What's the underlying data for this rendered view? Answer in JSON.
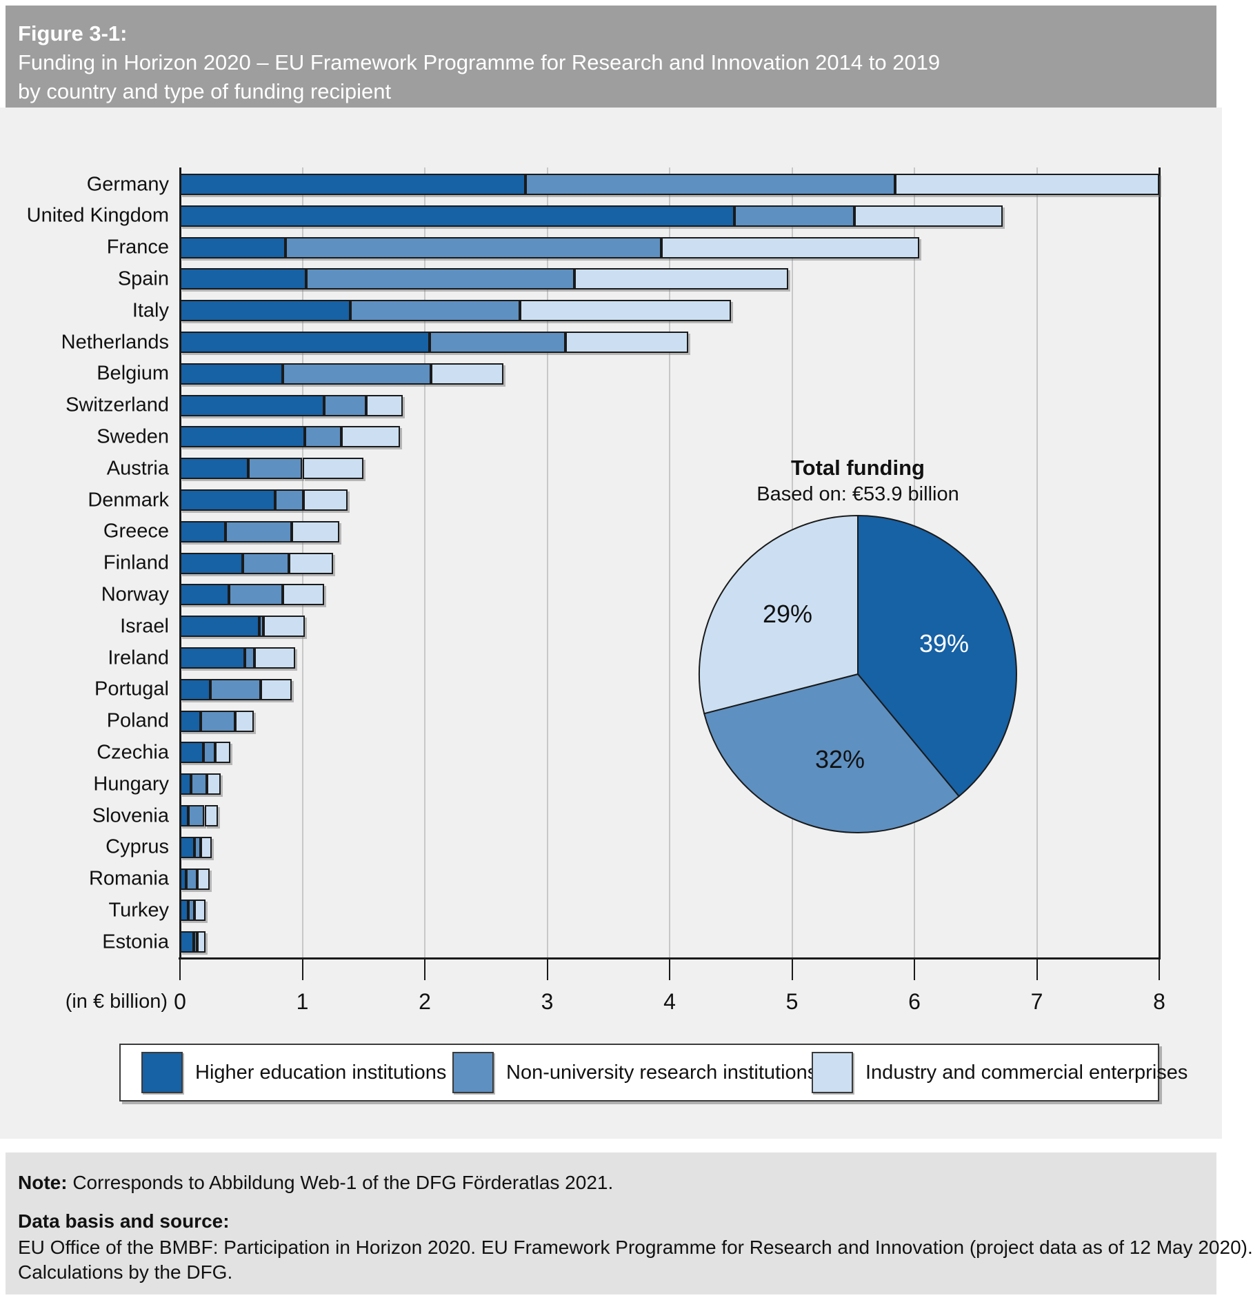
{
  "header": {
    "figure_label": "Figure 3-1:",
    "title_line1": "Funding in Horizon 2020 – EU Framework Programme for Research and Innovation 2014 to 2019",
    "title_line2": "by country and type of funding recipient"
  },
  "colors": {
    "higher_education": "#1761A5",
    "non_university": "#5E90C1",
    "industry": "#CCDFF2",
    "bar_border": "#1a1a1a",
    "header_band": "#9e9e9e",
    "chart_bg": "#f0f0f0",
    "footer_band": "#e2e2e2",
    "gridline": "#c7c7c7"
  },
  "chart_data": {
    "type": "bar",
    "orientation": "horizontal-stacked",
    "unit_label": "(in € billion)",
    "xlim": [
      0,
      8
    ],
    "x_ticks": [
      0,
      1,
      2,
      3,
      4,
      5,
      6,
      7,
      8
    ],
    "grid": "vertical",
    "categories": [
      "Germany",
      "United Kingdom",
      "France",
      "Spain",
      "Italy",
      "Netherlands",
      "Belgium",
      "Switzerland",
      "Sweden",
      "Austria",
      "Denmark",
      "Greece",
      "Finland",
      "Norway",
      "Israel",
      "Ireland",
      "Portugal",
      "Poland",
      "Czechia",
      "Hungary",
      "Slovenia",
      "Cyprus",
      "Romania",
      "Turkey",
      "Estonia"
    ],
    "series": [
      {
        "name": "Higher education institutions",
        "color_key": "higher_education",
        "values": [
          2.82,
          4.53,
          0.86,
          1.03,
          1.39,
          2.04,
          0.84,
          1.18,
          1.02,
          0.56,
          0.78,
          0.37,
          0.51,
          0.4,
          0.65,
          0.53,
          0.25,
          0.17,
          0.19,
          0.09,
          0.07,
          0.12,
          0.05,
          0.07,
          0.11
        ]
      },
      {
        "name": "Non-university research institutions",
        "color_key": "non_university",
        "values": [
          3.02,
          0.98,
          3.07,
          2.19,
          1.39,
          1.11,
          1.21,
          0.34,
          0.3,
          0.44,
          0.23,
          0.54,
          0.38,
          0.44,
          0.03,
          0.08,
          0.41,
          0.28,
          0.1,
          0.13,
          0.13,
          0.05,
          0.09,
          0.05,
          0.03
        ]
      },
      {
        "name": "Industry and commercial enterprises",
        "color_key": "industry",
        "values": [
          2.16,
          1.21,
          2.11,
          1.75,
          1.72,
          1.0,
          0.59,
          0.3,
          0.48,
          0.5,
          0.36,
          0.39,
          0.36,
          0.34,
          0.34,
          0.33,
          0.25,
          0.15,
          0.12,
          0.11,
          0.11,
          0.09,
          0.1,
          0.09,
          0.07
        ]
      }
    ],
    "totals": [
      8.0,
      6.72,
      6.04,
      4.97,
      4.5,
      4.15,
      2.64,
      1.82,
      1.8,
      1.5,
      1.37,
      1.3,
      1.25,
      1.18,
      1.02,
      0.94,
      0.91,
      0.6,
      0.41,
      0.33,
      0.31,
      0.26,
      0.24,
      0.21,
      0.21
    ],
    "pie": {
      "type": "pie",
      "title": "Total funding",
      "subtitle": "Based on: €53.9 billion",
      "start_angle_deg": 0,
      "direction": "clockwise",
      "slices": [
        {
          "label": "39%",
          "value": 39,
          "series": "Higher education institutions",
          "color_key": "higher_education",
          "text_color": "#ffffff"
        },
        {
          "label": "32%",
          "value": 32,
          "series": "Non-university research institutions",
          "color_key": "non_university",
          "text_color": "#111111"
        },
        {
          "label": "29%",
          "value": 29,
          "series": "Industry and commercial enterprises",
          "color_key": "industry",
          "text_color": "#111111"
        }
      ]
    }
  },
  "legend": {
    "items": [
      {
        "label": "Higher education institutions",
        "color_key": "higher_education"
      },
      {
        "label": "Non-university research institutions",
        "color_key": "non_university"
      },
      {
        "label": "Industry and commercial enterprises",
        "color_key": "industry"
      }
    ]
  },
  "footer": {
    "note_label": "Note:",
    "note_text": " Corresponds to Abbildung Web-1 of the DFG Förderatlas 2021.",
    "source_label": "Data basis and source:",
    "source_line1": "EU Office of the BMBF: Participation in Horizon 2020. EU Framework Programme for Research and Innovation (project data as of 12 May 2020).",
    "source_line2": "Calculations by the DFG."
  }
}
